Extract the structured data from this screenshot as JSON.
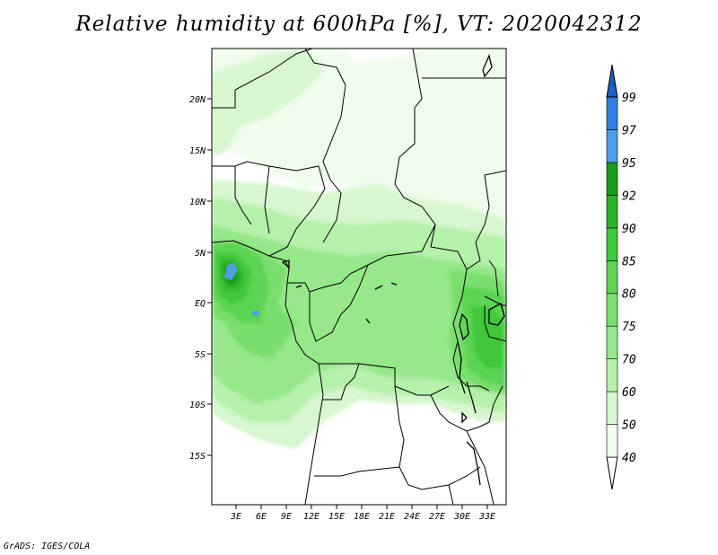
{
  "title": "Relative humidity at 600hPa [%], VT: 2020042312",
  "credit": "GrADS: IGES/COLA",
  "colors": {
    "c40": "#f0fcec",
    "c50": "#d6f7cf",
    "c60": "#b6f1ab",
    "c70": "#96e88a",
    "c75": "#78de6c",
    "c80": "#5cd452",
    "c85": "#3fc73b",
    "c90": "#2cb32a",
    "c92": "#1b9a1c",
    "c95": "#4c9ee8",
    "c97": "#2e7fe0",
    "c99": "#1a5fc4"
  },
  "chart_data": {
    "type": "heatmap",
    "title": "Relative humidity at 600hPa [%], VT: 2020042312",
    "variable": "Relative humidity",
    "units": "%",
    "level": "600hPa",
    "valid_time": "2020042312",
    "lon_range": [
      0,
      36
    ],
    "lat_range": [
      -20,
      25
    ],
    "x_ticks": [
      "3E",
      "6E",
      "9E",
      "12E",
      "15E",
      "18E",
      "21E",
      "24E",
      "27E",
      "30E",
      "33E"
    ],
    "y_ticks": [
      "20N",
      "15N",
      "10N",
      "5N",
      "EQ",
      "5S",
      "10S",
      "15S"
    ],
    "colorbar": {
      "levels": [
        "40",
        "50",
        "60",
        "70",
        "75",
        "80",
        "85",
        "90",
        "92",
        "95",
        "97",
        "99"
      ],
      "colors": [
        "#f0fcec",
        "#d6f7cf",
        "#b6f1ab",
        "#96e88a",
        "#78de6c",
        "#5cd452",
        "#3fc73b",
        "#2cb32a",
        "#1b9a1c",
        "#4c9ee8",
        "#2e7fe0",
        "#1a5fc4"
      ]
    }
  }
}
